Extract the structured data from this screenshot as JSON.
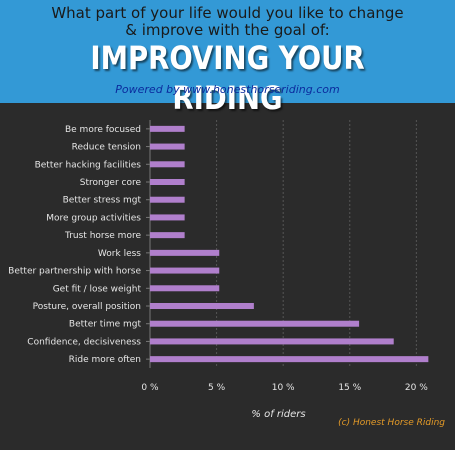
{
  "header": {
    "question_line1": "What part of your life would you like to change",
    "question_line2": "& improve with the goal of:",
    "goal": "IMPROVING YOUR RIDING",
    "powered_by": "Powered by www.honesthorseriding.com"
  },
  "credit": "(c) Honest Horse Riding",
  "colors": {
    "header_bg": "#3399d6",
    "plot_bg": "#2b2b2b",
    "bar": "#b07fcc",
    "text": "#e6e6e6",
    "credit": "#e39a28"
  },
  "chart_data": {
    "type": "bar",
    "orientation": "horizontal",
    "categories": [
      "Be more focused",
      "Reduce tension",
      "Better hacking facilities",
      "Stronger core",
      "Better stress mgt",
      "More group activities",
      "Trust horse more",
      "Work less",
      "Better partnership with horse",
      "Get fit / lose weight",
      "Posture, overall position",
      "Better time mgt",
      "Confidence, decisiveness",
      "Ride more often"
    ],
    "values": [
      2.6,
      2.6,
      2.6,
      2.6,
      2.6,
      2.6,
      2.6,
      5.2,
      5.2,
      5.2,
      7.8,
      15.7,
      18.3,
      20.9
    ],
    "xlabel": "% of riders",
    "xlim": [
      0,
      22
    ],
    "xticks": [
      0,
      5,
      10,
      15,
      20
    ],
    "xtick_labels": [
      "0 %",
      "5 %",
      "10 %",
      "15 %",
      "20 %"
    ],
    "grid": true
  }
}
